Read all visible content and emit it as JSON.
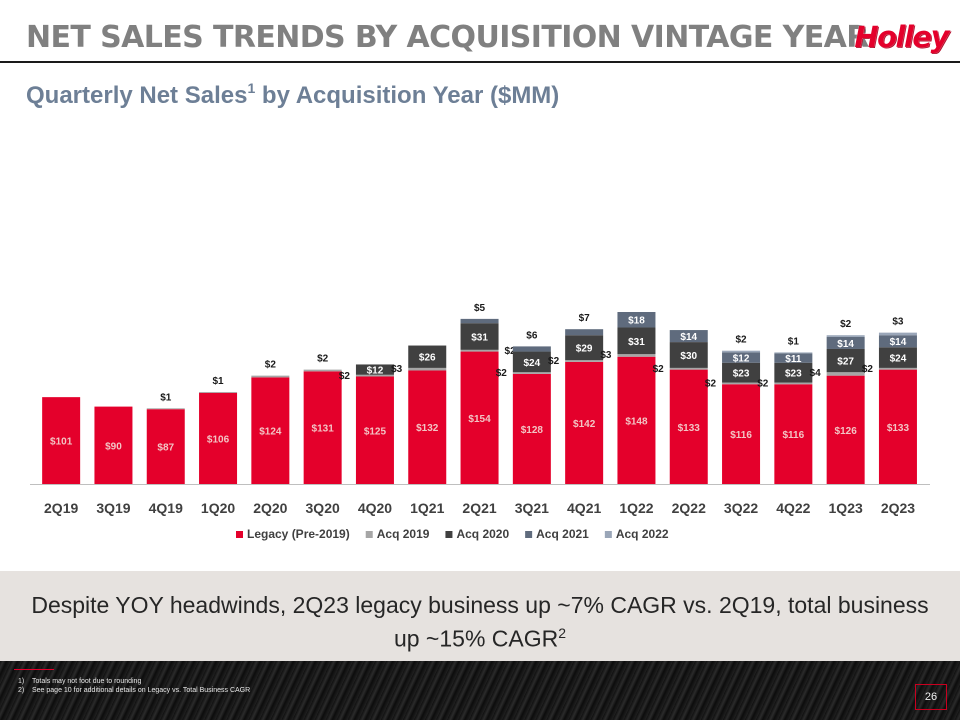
{
  "header": {
    "title": "NET SALES TRENDS BY ACQUISITION VINTAGE YEAR",
    "logo_text": "Holley",
    "subtitle_main": "Quarterly Net Sales",
    "subtitle_sup": "1",
    "subtitle_end": " by Acquisition Year ($MM)"
  },
  "chart_data": {
    "type": "bar",
    "stacked": true,
    "categories": [
      "2Q19",
      "3Q19",
      "4Q19",
      "1Q20",
      "2Q20",
      "3Q20",
      "4Q20",
      "1Q21",
      "2Q21",
      "3Q21",
      "4Q21",
      "1Q22",
      "2Q22",
      "3Q22",
      "4Q22",
      "1Q23",
      "2Q23"
    ],
    "series": [
      {
        "name": "Legacy (Pre-2019)",
        "color": "#e4002b",
        "values": [
          101,
          90,
          87,
          106,
          124,
          131,
          125,
          132,
          154,
          128,
          142,
          148,
          133,
          116,
          116,
          126,
          133
        ]
      },
      {
        "name": "Acq 2019",
        "color": "#a6a6a6",
        "values": [
          0,
          0,
          1,
          1,
          2,
          2,
          2,
          3,
          2,
          2,
          2,
          3,
          2,
          2,
          2,
          4,
          2
        ]
      },
      {
        "name": "Acq 2020",
        "color": "#404040",
        "values": [
          0,
          0,
          0,
          0,
          0,
          0,
          12,
          26,
          31,
          24,
          29,
          31,
          30,
          23,
          23,
          27,
          24
        ]
      },
      {
        "name": "Acq 2021",
        "color": "#5f6b7d",
        "values": [
          0,
          0,
          0,
          0,
          0,
          0,
          0,
          0,
          5,
          6,
          7,
          18,
          14,
          12,
          11,
          14,
          14
        ]
      },
      {
        "name": "Acq 2022",
        "color": "#9aa6b8",
        "values": [
          0,
          0,
          0,
          0,
          0,
          0,
          0,
          0,
          0,
          0,
          0,
          0,
          0,
          2,
          1,
          2,
          3
        ]
      }
    ],
    "data_labels": [
      [
        {
          "text": "$101",
          "series": 0,
          "side": "in"
        },
        {
          "text": "$90",
          "series": 0,
          "side": "in"
        },
        {
          "text": "$87",
          "series": 0,
          "side": "in"
        },
        {
          "text": "$1",
          "series": 1,
          "side": "top"
        },
        {
          "text": "$106",
          "series": 0,
          "side": "in"
        },
        {
          "text": "$1",
          "series": 1,
          "side": "top"
        },
        {
          "text": "$124",
          "series": 0,
          "side": "in"
        },
        {
          "text": "$2",
          "series": 1,
          "side": "top"
        },
        {
          "text": "$131",
          "series": 0,
          "side": "in"
        },
        {
          "text": "$2",
          "series": 1,
          "side": "top"
        },
        {
          "text": "$125",
          "series": 0,
          "side": "in"
        },
        {
          "text": "$2",
          "series": 1,
          "side": "left"
        },
        {
          "text": "$12",
          "series": 2,
          "side": "in"
        },
        {
          "text": "$132",
          "series": 0,
          "side": "in"
        },
        {
          "text": "$3",
          "series": 1,
          "side": "left"
        },
        {
          "text": "$26",
          "series": 2,
          "side": "in"
        },
        {
          "text": "$154",
          "series": 0,
          "side": "in"
        },
        {
          "text": "$2",
          "series": 1,
          "side": "right"
        },
        {
          "text": "$31",
          "series": 2,
          "side": "in"
        },
        {
          "text": "$5",
          "series": 3,
          "side": "top"
        },
        {
          "text": "$128",
          "series": 0,
          "side": "in"
        },
        {
          "text": "$2",
          "series": 1,
          "side": "left"
        },
        {
          "text": "$24",
          "series": 2,
          "side": "in"
        },
        {
          "text": "$6",
          "series": 3,
          "side": "top"
        },
        {
          "text": "$142",
          "series": 0,
          "side": "in"
        },
        {
          "text": "$2",
          "series": 1,
          "side": "left"
        },
        {
          "text": "$29",
          "series": 2,
          "side": "in"
        },
        {
          "text": "$7",
          "series": 3,
          "side": "top"
        },
        {
          "text": "$148",
          "series": 0,
          "side": "in"
        },
        {
          "text": "$3",
          "series": 1,
          "side": "left"
        },
        {
          "text": "$31",
          "series": 2,
          "side": "in"
        },
        {
          "text": "$18",
          "series": 3,
          "side": "in"
        },
        {
          "text": "$133",
          "series": 0,
          "side": "in"
        },
        {
          "text": "$2",
          "series": 1,
          "side": "left"
        },
        {
          "text": "$30",
          "series": 2,
          "side": "in"
        },
        {
          "text": "$14",
          "series": 3,
          "side": "in"
        },
        {
          "text": "$116",
          "series": 0,
          "side": "in"
        },
        {
          "text": "$2",
          "series": 1,
          "side": "left"
        },
        {
          "text": "$23",
          "series": 2,
          "side": "in"
        },
        {
          "text": "$12",
          "series": 3,
          "side": "in"
        },
        {
          "text": "$2",
          "series": 4,
          "side": "top"
        },
        {
          "text": "$116",
          "series": 0,
          "side": "in"
        },
        {
          "text": "$2",
          "series": 1,
          "side": "left"
        },
        {
          "text": "$23",
          "series": 2,
          "side": "in"
        },
        {
          "text": "$11",
          "series": 3,
          "side": "in"
        },
        {
          "text": "$1",
          "series": 4,
          "side": "top"
        },
        {
          "text": "$126",
          "series": 0,
          "side": "in"
        },
        {
          "text": "$4",
          "series": 1,
          "side": "left"
        },
        {
          "text": "$27",
          "series": 2,
          "side": "in"
        },
        {
          "text": "$14",
          "series": 3,
          "side": "in"
        },
        {
          "text": "$2",
          "series": 4,
          "side": "top"
        },
        {
          "text": "$133",
          "series": 0,
          "side": "in"
        },
        {
          "text": "$2",
          "series": 1,
          "side": "left"
        },
        {
          "text": "$24",
          "series": 2,
          "side": "in"
        },
        {
          "text": "$14",
          "series": 3,
          "side": "in"
        },
        {
          "text": "$3",
          "series": 4,
          "side": "top"
        }
      ]
    ],
    "ylim": [
      0,
      220
    ],
    "grid": false,
    "legend_position": "bottom"
  },
  "banner": {
    "line1": "Despite YOY headwinds, 2Q23 legacy business up ~7% CAGR vs. 2Q19, total business",
    "line2": "up ~15% CAGR",
    "line2_sup": "2"
  },
  "footnotes": [
    {
      "num": "1)",
      "text": "Totals may not foot due to rounding"
    },
    {
      "num": "2)",
      "text": "See page 10 for additional details on Legacy vs. Total Business CAGR"
    }
  ],
  "page_number": "26"
}
